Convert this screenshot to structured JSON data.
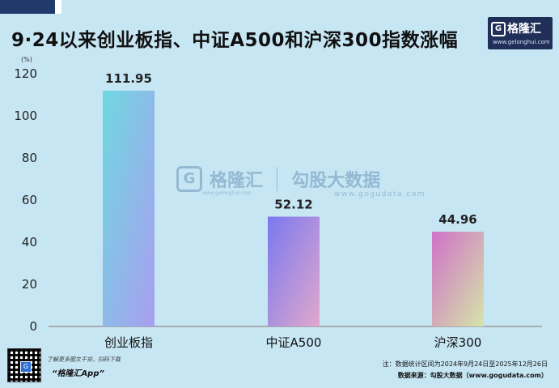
{
  "title": "9·24以来创业板指、中证A500和沪深300指数涨幅",
  "brand": {
    "logo_text": "格隆汇",
    "logo_letter": "G",
    "url": "www.gelonghui.com"
  },
  "watermark": {
    "name1": "格隆汇",
    "name2": "勾股大数据",
    "url1": "www.gelonghui.com",
    "url2": "www.gogudata.com"
  },
  "footer": {
    "app_promo": "了解更多图文干货，扫码下载",
    "app_name": "“格隆汇App”",
    "note": "注：数据统计区间为2024年9月24日至2025年12月26日",
    "source": "数据来源：勾股大数据（www.gogudata.com）"
  },
  "colors": {
    "background": "#c7e6f4",
    "bar1": [
      "#6fd8e0",
      "#a99ef0"
    ],
    "bar2": [
      "#7a78f0",
      "#e0a8cc"
    ],
    "bar3": [
      "#cf72c8",
      "#d6e4a8"
    ],
    "brand_box": "#1f2f57"
  },
  "chart_data": {
    "type": "bar",
    "unit_label": "(%)",
    "categories": [
      "创业板指",
      "中证A500",
      "沪深300"
    ],
    "values": [
      111.95,
      52.12,
      44.96
    ],
    "value_labels": [
      "111.95",
      "52.12",
      "44.96"
    ],
    "ylim": [
      0,
      120
    ],
    "yticks": [
      0,
      20,
      40,
      60,
      80,
      100,
      120
    ],
    "grid": false,
    "legend": "none"
  }
}
